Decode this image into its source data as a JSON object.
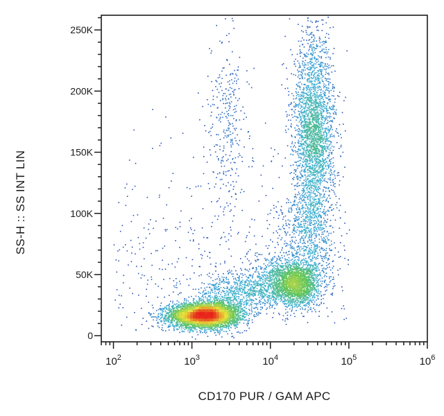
{
  "chart_data": {
    "type": "scatter",
    "style": "flow cytometry density dot plot (blue → green → yellow → red)",
    "xlabel": "CD170 PUR / GAM APC",
    "ylabel": "SS-H :: SS INT LIN",
    "x_scale": "log",
    "xlim": [
      70,
      1000000
    ],
    "x_ticks": [
      {
        "value": 100,
        "label": "10^2"
      },
      {
        "value": 1000,
        "label": "10^3"
      },
      {
        "value": 10000,
        "label": "10^4"
      },
      {
        "value": 100000,
        "label": "10^5"
      },
      {
        "value": 1000000,
        "label": "10^6"
      }
    ],
    "y_scale": "linear",
    "ylim": [
      -5000,
      262000
    ],
    "y_ticks": [
      {
        "value": 0,
        "label": "0"
      },
      {
        "value": 50000,
        "label": "50K"
      },
      {
        "value": 100000,
        "label": "100K"
      },
      {
        "value": 150000,
        "label": "150K"
      },
      {
        "value": 200000,
        "label": "200K"
      },
      {
        "value": 250000,
        "label": "250K"
      }
    ],
    "populations": [
      {
        "log10_x_center": 3.15,
        "y_center": 17000,
        "log10_x_sd": 0.22,
        "y_sd": 5000,
        "relative_density": 1.0,
        "peak_color": "red"
      },
      {
        "log10_x_center": 4.32,
        "y_center": 42000,
        "log10_x_sd": 0.15,
        "y_sd": 9000,
        "relative_density": 0.35,
        "peak_color": "green"
      },
      {
        "log10_x_center": 4.55,
        "y_center": 165000,
        "log10_x_sd": 0.13,
        "y_sd": 40000,
        "relative_density": 0.55,
        "peak_color": "yellow-green"
      },
      {
        "log10_x_center": 3.45,
        "y_center": 175000,
        "log10_x_sd": 0.12,
        "y_sd": 40000,
        "relative_density": 0.06,
        "peak_color": "blue"
      }
    ],
    "grid": false,
    "legend": "none"
  },
  "colors": {
    "density_low": "#2233aa",
    "density_mid_low": "#3fb0d8",
    "density_mid": "#5ec45a",
    "density_mid_high": "#e8e23a",
    "density_high": "#e8231c",
    "axis": "#1a1a1a"
  }
}
